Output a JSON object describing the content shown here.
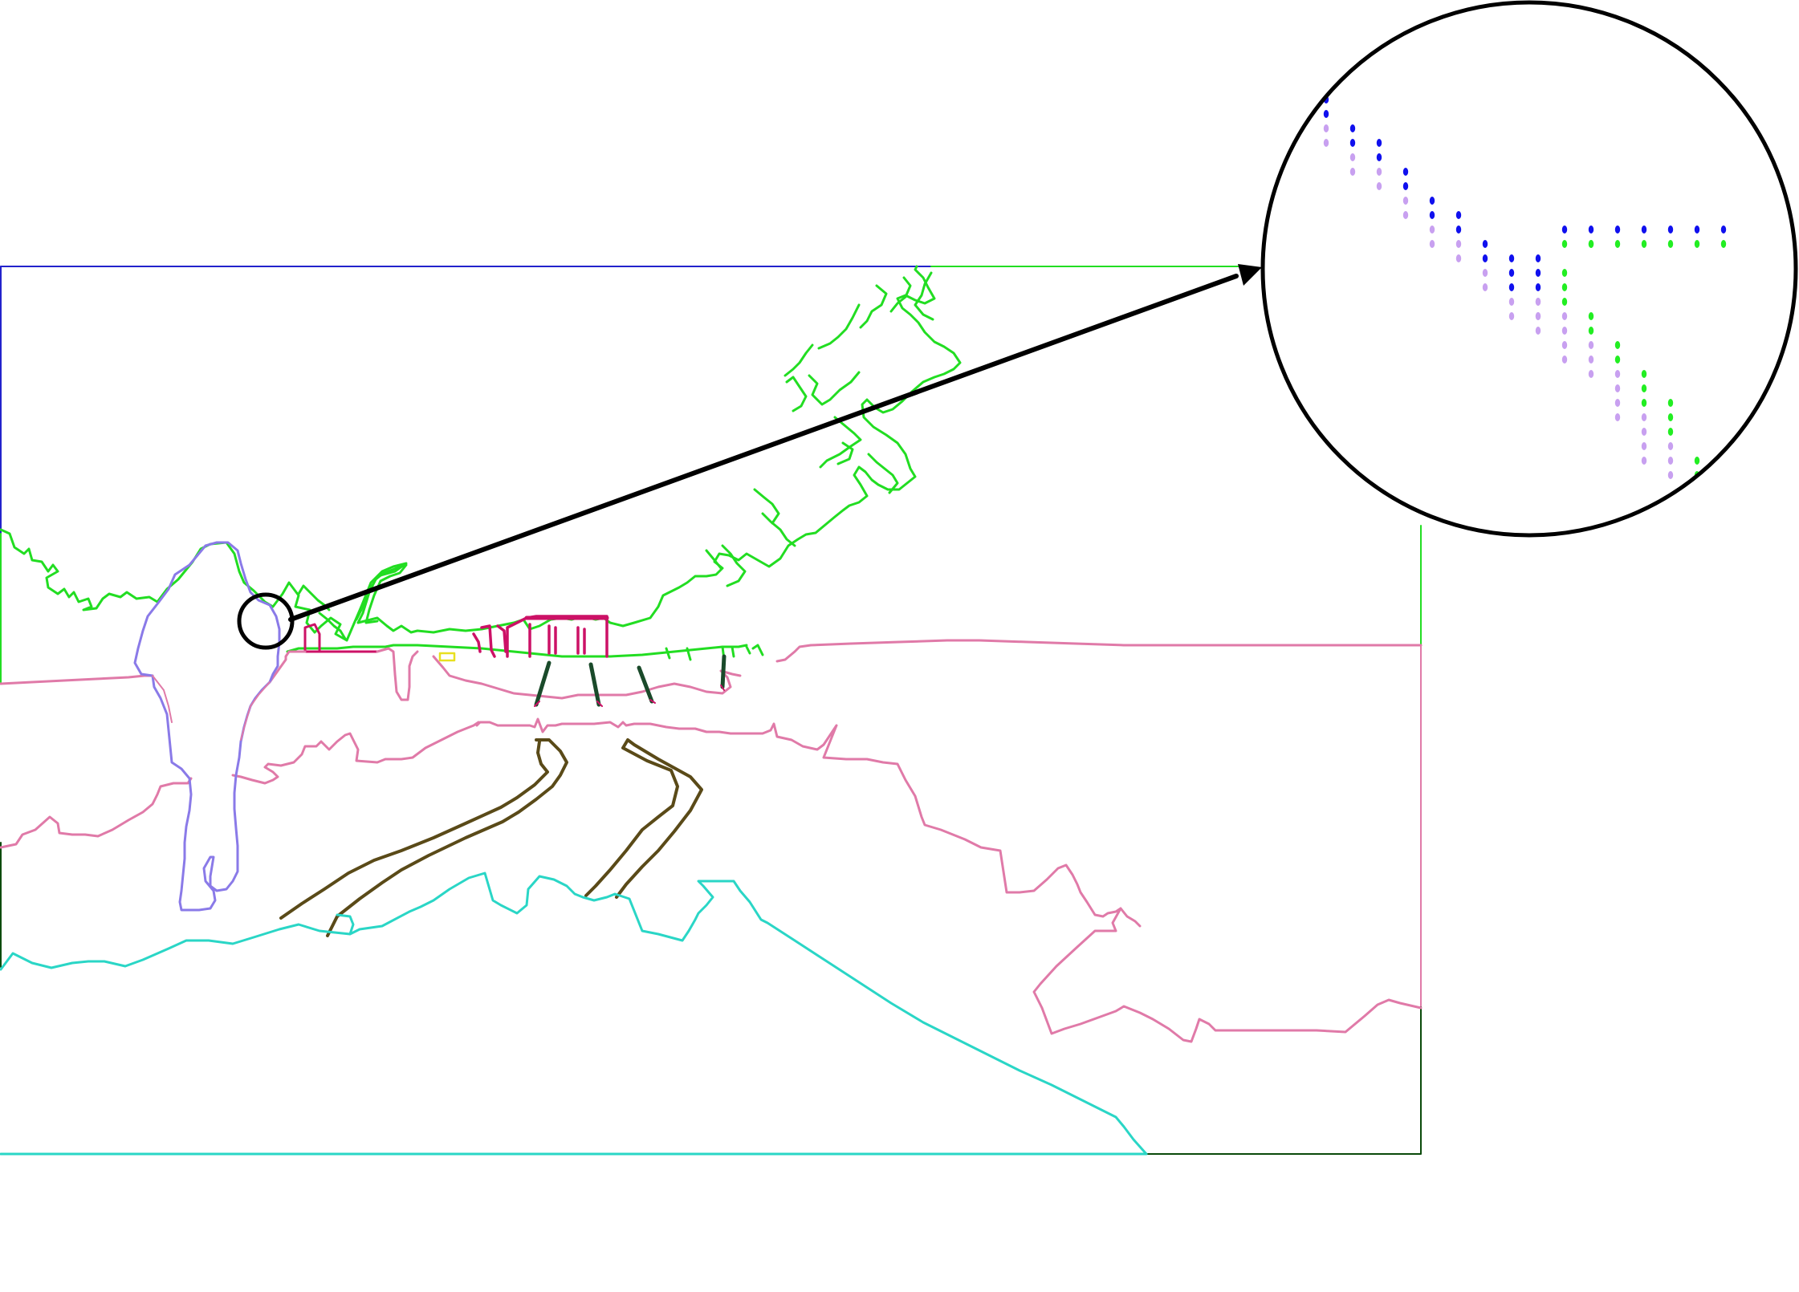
{
  "figure": {
    "colors": {
      "sky": "#2222cc",
      "vegetation": "#22dd22",
      "vegetation_dark": "#116611",
      "ground": "#e07aa8",
      "person": "#8a7ae8",
      "road": "#5a4a18",
      "grass_foreground": "#2ad6c6",
      "building": "#cc1166",
      "pole": "#1a4a2a",
      "sign": "#e8e020",
      "frame_dark": "#0a4a0a",
      "pointer": "#000000",
      "dot_blue": "#1010ee",
      "dot_lilac": "#c8a0f0",
      "dot_green": "#22ee22"
    },
    "icons": {
      "zoom_source": "circle-magnifier-icon",
      "zoom_arrow": "arrow-right-icon",
      "zoom_lens": "magnified-lens-icon"
    }
  }
}
